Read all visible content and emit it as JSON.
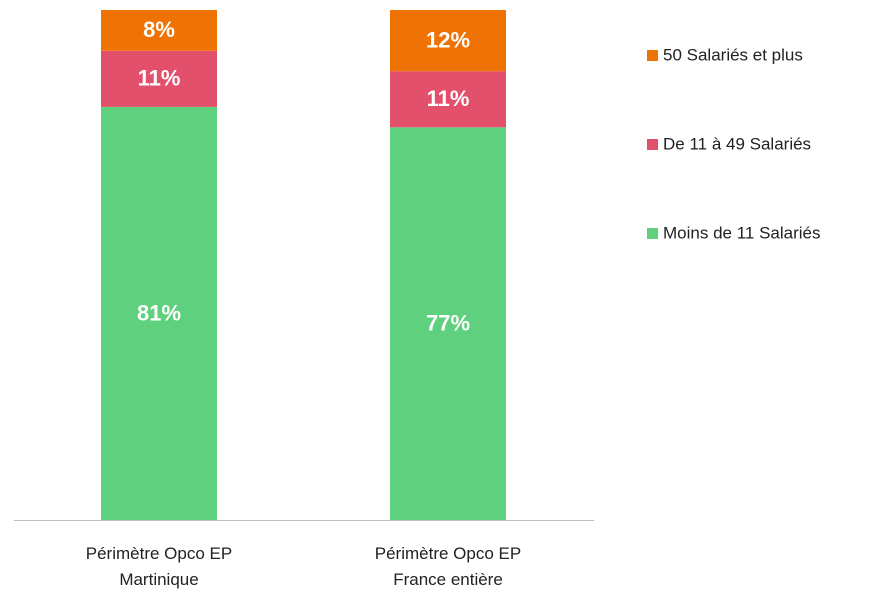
{
  "chart_data": {
    "type": "stacked_bar",
    "categories": [
      "Périmètre Opco EP Martinique",
      "Périmètre Opco EP France entière"
    ],
    "series": [
      {
        "name": "Moins de 11 Salariés",
        "color": "#5fd07d",
        "values": [
          81,
          77
        ],
        "value_labels": [
          "81%",
          "77%"
        ]
      },
      {
        "name": "De 11 à 49 Salariés",
        "color": "#e2506c",
        "values": [
          11,
          11
        ],
        "value_labels": [
          "11%",
          "11%"
        ]
      },
      {
        "name": "50 Salariés et plus",
        "color": "#ef7204",
        "values": [
          8,
          12
        ],
        "value_labels": [
          "8%",
          "12%"
        ]
      }
    ],
    "ylim": [
      0,
      100
    ]
  }
}
